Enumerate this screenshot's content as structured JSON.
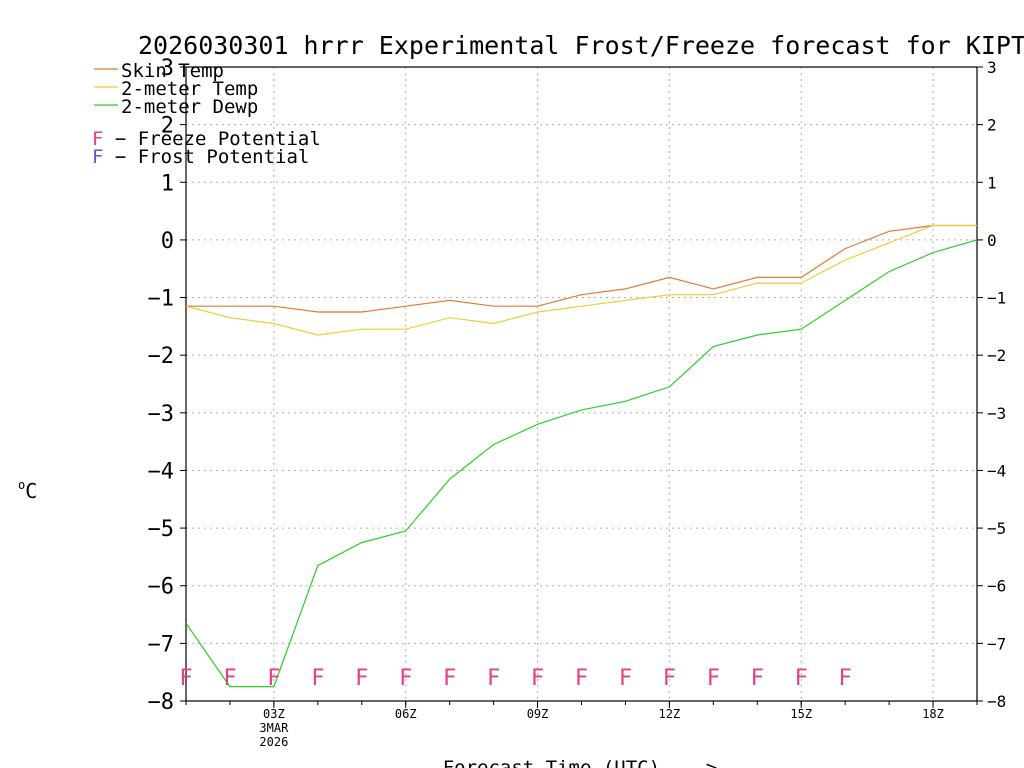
{
  "chart_data": {
    "type": "line",
    "title": "2026030301 hrrr Experimental Frost/Freeze forecast for KIPT",
    "xlabel": "Forecast Time (UTC) --->",
    "ylabel": "°C",
    "ylabel_unit": "C",
    "ylabel_degree": "o",
    "xlim": [
      1,
      19
    ],
    "ylim": [
      -8,
      3
    ],
    "grid": true,
    "x": [
      1,
      2,
      3,
      4,
      5,
      6,
      7,
      8,
      9,
      10,
      11,
      12,
      13,
      14,
      15,
      16,
      17,
      18,
      19
    ],
    "x_ticks": [
      {
        "x": 3,
        "label": "03Z",
        "sublabels": [
          "3MAR",
          "2026"
        ]
      },
      {
        "x": 6,
        "label": "06Z",
        "sublabels": []
      },
      {
        "x": 9,
        "label": "09Z",
        "sublabels": []
      },
      {
        "x": 12,
        "label": "12Z",
        "sublabels": []
      },
      {
        "x": 15,
        "label": "15Z",
        "sublabels": []
      },
      {
        "x": 18,
        "label": "18Z",
        "sublabels": []
      }
    ],
    "y_ticks": [
      3,
      2,
      1,
      0,
      -1,
      -2,
      -3,
      -4,
      -5,
      -6,
      -7,
      -8
    ],
    "y_tick_labels": [
      "3",
      "2",
      "1",
      "0",
      "−1",
      "−2",
      "−3",
      "−4",
      "−5",
      "−6",
      "−7",
      "−8"
    ],
    "series": [
      {
        "name": "Skin Temp",
        "color": "#e07b39",
        "values": [
          -1.15,
          -1.15,
          -1.15,
          -1.25,
          -1.25,
          -1.15,
          -1.05,
          -1.15,
          -1.15,
          -0.95,
          -0.85,
          -0.65,
          -0.85,
          -0.65,
          -0.65,
          -0.15,
          0.15,
          0.25,
          0.25
        ]
      },
      {
        "name": "2-meter Temp",
        "color": "#e8cf3a",
        "values": [
          -1.15,
          -1.35,
          -1.45,
          -1.65,
          -1.55,
          -1.55,
          -1.35,
          -1.45,
          -1.25,
          -1.15,
          -1.05,
          -0.95,
          -0.95,
          -0.75,
          -0.75,
          -0.35,
          -0.05,
          0.25,
          0.25
        ]
      },
      {
        "name": "2-meter Dewp",
        "color": "#2ecc2e",
        "values": [
          -6.65,
          -7.75,
          -7.75,
          -5.65,
          -5.25,
          -5.05,
          -4.15,
          -3.55,
          -3.2,
          -2.95,
          -2.8,
          -2.55,
          -1.85,
          -1.65,
          -1.55,
          -1.05,
          -0.55,
          -0.22,
          0.0
        ]
      }
    ],
    "legend": {
      "placement": "top-left",
      "entries": [
        "Skin Temp",
        "2-meter Temp",
        "2-meter Dewp"
      ],
      "markers": [
        {
          "letter": "F",
          "text": " − Freeze Potential",
          "color": "#e0408a"
        },
        {
          "letter": "F",
          "text": " − Frost Potential",
          "color": "#5a5ad8"
        }
      ]
    },
    "freeze_markers": {
      "letter": "F",
      "color": "#e0408a",
      "y": -7.55,
      "x": [
        1,
        2,
        3,
        4,
        5,
        6,
        7,
        8,
        9,
        10,
        11,
        12,
        13,
        14,
        15,
        16
      ]
    }
  }
}
